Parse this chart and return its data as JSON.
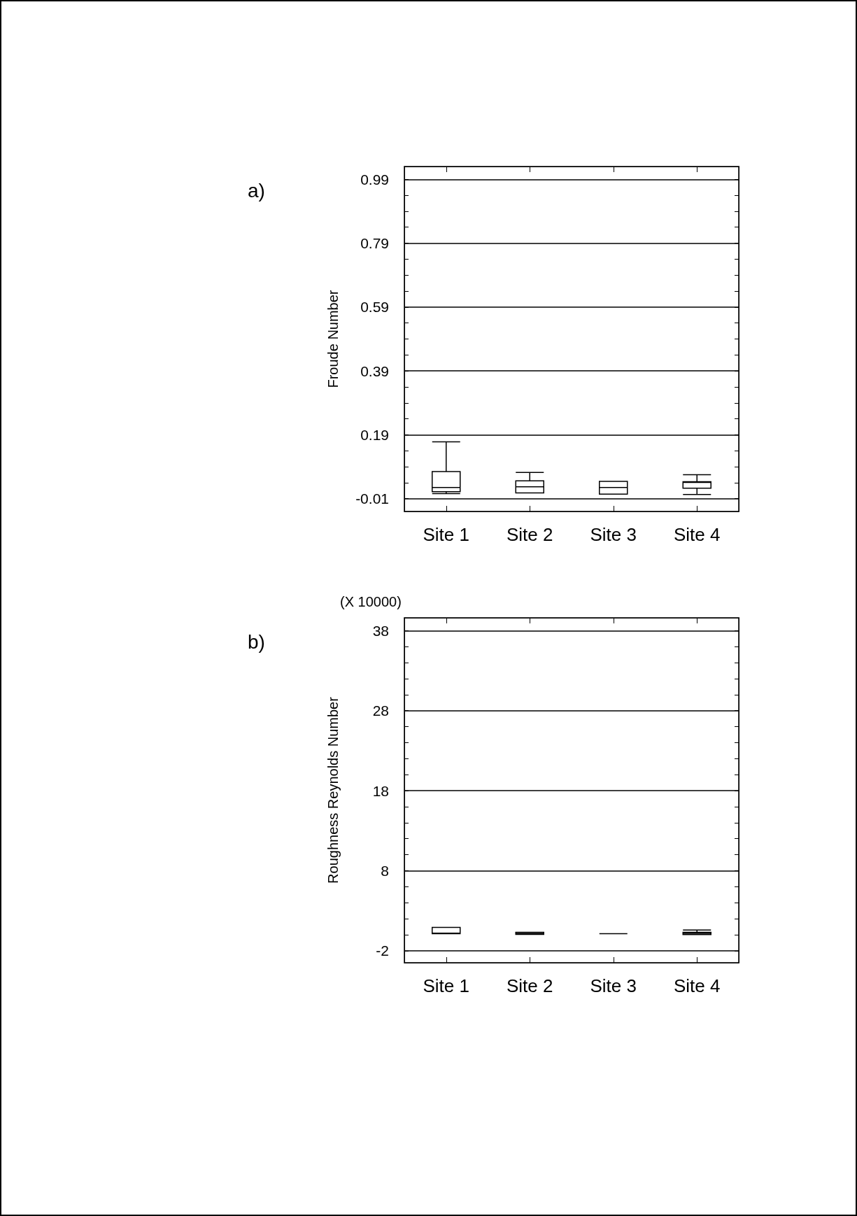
{
  "chart_data": [
    {
      "type": "box",
      "ylabel": "Froude Number",
      "categories": [
        "Site 1",
        "Site 2",
        "Site 3",
        "Site 4"
      ],
      "boxes": [
        {
          "low": 0.006,
          "q1": 0.012,
          "median": 0.025,
          "q3": 0.075,
          "high": 0.168
        },
        {
          "low": 0.008,
          "q1": 0.008,
          "median": 0.027,
          "q3": 0.046,
          "high": 0.072
        },
        {
          "low": 0.004,
          "q1": 0.004,
          "median": 0.025,
          "q3": 0.044,
          "high": 0.044
        },
        {
          "low": 0.003,
          "q1": 0.023,
          "median": 0.041,
          "q3": 0.043,
          "high": 0.065
        }
      ],
      "color": "#000000",
      "ylim": [
        -0.05,
        1.03
      ],
      "yticks": [
        -0.01,
        {
          "value": 0.04,
          "label": null
        },
        {
          "value": 0.09,
          "label": null
        },
        {
          "value": 0.14,
          "label": null
        },
        0.19,
        {
          "value": 0.24,
          "label": null
        },
        {
          "value": 0.29,
          "label": null
        },
        {
          "value": 0.34,
          "label": null
        },
        0.39,
        {
          "value": 0.44,
          "label": null
        },
        {
          "value": 0.49,
          "label": null
        },
        {
          "value": 0.54,
          "label": null
        },
        0.59,
        {
          "value": 0.64,
          "label": null
        },
        {
          "value": 0.69,
          "label": null
        },
        {
          "value": 0.74,
          "label": null
        },
        0.79,
        {
          "value": 0.84,
          "label": null
        },
        {
          "value": 0.89,
          "label": null
        },
        {
          "value": 0.94,
          "label": null
        },
        0.99
      ],
      "grid": "y",
      "annotations": [
        "a)"
      ]
    },
    {
      "type": "box",
      "ylabel": "Roughness Reynolds Number",
      "categories": [
        "Site 1",
        "Site 2",
        "Site 3",
        "Site 4"
      ],
      "boxes": [
        {
          "low": 0.12,
          "q1": 0.12,
          "median": 0.2,
          "q3": 0.92,
          "high": 0.92
        },
        {
          "low": 0.05,
          "q1": 0.05,
          "median": 0.15,
          "q3": 0.3,
          "high": 0.3
        },
        {
          "low": 0.12,
          "q1": 0.12,
          "median": 0.12,
          "q3": 0.12,
          "high": 0.12
        },
        {
          "low": 0.02,
          "q1": 0.02,
          "median": 0.18,
          "q3": 0.3,
          "high": 0.58
        }
      ],
      "color": "#000000",
      "ylim": [
        -3.5,
        39.6
      ],
      "yticks": [
        -2,
        {
          "value": 0,
          "label": null
        },
        {
          "value": 2,
          "label": null
        },
        {
          "value": 4,
          "label": null
        },
        {
          "value": 6,
          "label": null
        },
        8,
        {
          "value": 10,
          "label": null
        },
        {
          "value": 12,
          "label": null
        },
        {
          "value": 14,
          "label": null
        },
        {
          "value": 16,
          "label": null
        },
        18,
        {
          "value": 20,
          "label": null
        },
        {
          "value": 22,
          "label": null
        },
        {
          "value": 24,
          "label": null
        },
        {
          "value": 26,
          "label": null
        },
        28,
        {
          "value": 30,
          "label": null
        },
        {
          "value": 32,
          "label": null
        },
        {
          "value": 34,
          "label": null
        },
        {
          "value": 36,
          "label": null
        },
        38
      ],
      "grid": "y",
      "annotations": [
        "b)",
        "(X 10000)"
      ]
    }
  ]
}
